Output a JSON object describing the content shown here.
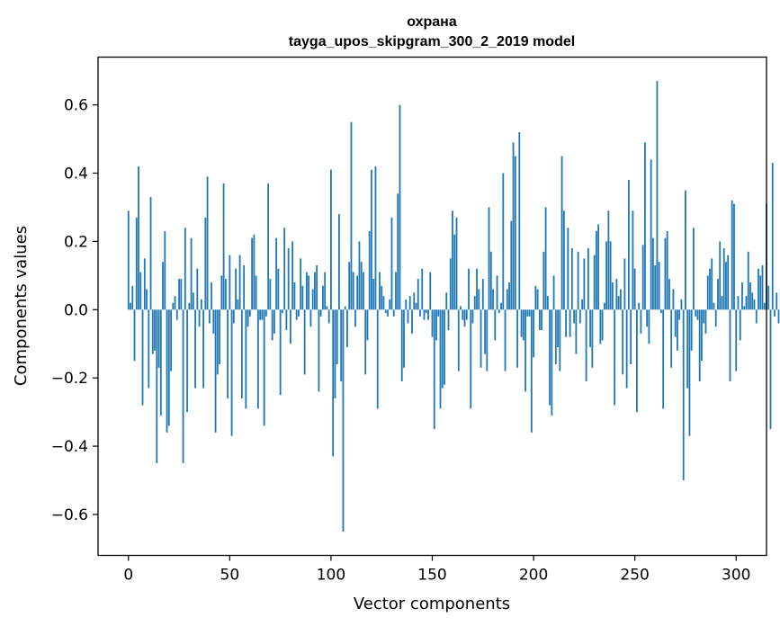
{
  "chart_data": {
    "type": "bar",
    "title": "охрана",
    "subtitle": "tayga_upos_skipgram_300_2_2019 model",
    "xlabel": "Vector components",
    "ylabel": "Components values",
    "xlim": [
      -15,
      315
    ],
    "ylim": [
      -0.72,
      0.74
    ],
    "xticks": [
      0,
      50,
      100,
      150,
      200,
      250,
      300
    ],
    "xtick_labels": [
      "0",
      "50",
      "100",
      "150",
      "200",
      "250",
      "300"
    ],
    "yticks": [
      -0.6,
      -0.4,
      -0.2,
      0.0,
      0.2,
      0.4,
      0.6
    ],
    "ytick_labels": [
      "−0.6",
      "−0.4",
      "−0.2",
      "0.0",
      "0.2",
      "0.4",
      "0.6"
    ],
    "grid": false,
    "legend": "none",
    "bar_color": "#1f77b4",
    "x_start": 0,
    "values": [
      0.29,
      0.02,
      0.07,
      -0.15,
      0.27,
      0.42,
      0.11,
      -0.28,
      0.15,
      0.06,
      -0.23,
      0.33,
      -0.13,
      -0.12,
      -0.45,
      -0.17,
      -0.31,
      0.14,
      0.23,
      -0.36,
      -0.34,
      -0.18,
      0.02,
      0.04,
      -0.03,
      0.09,
      0.09,
      -0.45,
      0.24,
      -0.3,
      0.02,
      0.21,
      0.05,
      -0.23,
      0.12,
      -0.05,
      0.03,
      -0.23,
      0.27,
      0.39,
      -0.04,
      0.08,
      -0.07,
      -0.36,
      -0.19,
      -0.16,
      0.1,
      0.37,
      0.09,
      -0.26,
      0.16,
      -0.37,
      -0.04,
      0.12,
      0.03,
      0.16,
      -0.26,
      0.13,
      -0.29,
      -0.05,
      -0.02,
      0.21,
      0.22,
      0.1,
      -0.29,
      -0.03,
      -0.03,
      -0.34,
      -0.02,
      0.37,
      0.09,
      -0.09,
      -0.07,
      0.21,
      0.12,
      -0.25,
      -0.01,
      0.24,
      -0.06,
      0.18,
      -0.1,
      0.2,
      0.08,
      -0.03,
      -0.02,
      0.15,
      0.07,
      -0.19,
      0.11,
      0.1,
      -0.05,
      0.06,
      0.11,
      0.13,
      -0.24,
      -0.02,
      0.07,
      0.11,
      0.01,
      -0.04,
      0.41,
      -0.43,
      -0.26,
      -0.16,
      0.28,
      -0.21,
      -0.65,
      0.01,
      -0.11,
      0.14,
      0.55,
      0.11,
      -0.05,
      0.1,
      0.2,
      0.14,
      0.11,
      -0.19,
      -0.09,
      0.23,
      0.41,
      0.09,
      0.42,
      -0.29,
      0.11,
      0.07,
      0.04,
      -0.01,
      -0.02,
      0.03,
      0.27,
      -0.02,
      0.11,
      0.34,
      0.6,
      -0.21,
      -0.17,
      0.03,
      -0.04,
      0.04,
      -0.07,
      0.05,
      0.02,
      0.09,
      -0.02,
      0.12,
      -0.03,
      -0.01,
      -0.03,
      0.11,
      -0.08,
      -0.35,
      -0.09,
      -0.02,
      -0.29,
      -0.23,
      -0.22,
      0.05,
      -0.06,
      0.15,
      0.29,
      0.22,
      0.27,
      -0.18,
      0.01,
      -0.03,
      -0.05,
      -0.03,
      0.12,
      -0.29,
      -0.04,
      0.04,
      0.12,
      0.06,
      -0.17,
      0.09,
      -0.13,
      -0.18,
      0.3,
      0.17,
      0.06,
      -0.09,
      0.1,
      -0.01,
      0.02,
      0.4,
      -0.18,
      0.06,
      0.08,
      0.26,
      0.49,
      0.45,
      -0.17,
      0.52,
      -0.08,
      -0.09,
      -0.24,
      -0.02,
      -0.02,
      -0.36,
      -0.14,
      0.07,
      0.06,
      -0.06,
      -0.06,
      0.17,
      0.3,
      0.04,
      -0.28,
      -0.31,
      0.1,
      -0.16,
      -0.11,
      -0.18,
      0.45,
      0.29,
      -0.08,
      0.24,
      -0.08,
      0.18,
      -0.04,
      -0.13,
      0.17,
      -0.04,
      0.03,
      0.15,
      -0.21,
      0.18,
      -0.11,
      -0.17,
      0.16,
      0.23,
      0.25,
      -0.1,
      -0.09,
      0.02,
      0.2,
      0.29,
      0.2,
      0.08,
      -0.28,
      0.09,
      0.04,
      0.06,
      -0.19,
      0.15,
      -0.23,
      0.38,
      -0.16,
      0.29,
      0.12,
      -0.3,
      0.02,
      -0.07,
      0.19,
      0.49,
      -0.05,
      -0.1,
      0.44,
      0.21,
      0.13,
      0.67,
      0.14,
      -0.01,
      -0.29,
      0.21,
      0.23,
      0.09,
      -0.17,
      0.06,
      -0.08,
      -0.12,
      -0.03,
      0.03,
      -0.5,
      0.35,
      -0.23,
      -0.37,
      -0.12,
      0.24,
      -0.02,
      -0.03,
      -0.21,
      -0.15,
      -0.04,
      -0.07,
      0.1,
      0.12,
      0.15,
      0.02,
      -0.05,
      0.09,
      0.2,
      0.04,
      0.18,
      0.14,
      0.16,
      -0.21,
      0.32,
      0.31,
      -0.18,
      0.04,
      -0.09,
      0.08,
      0.01,
      0.04,
      0.17,
      0.08,
      0.05,
      0.03,
      -0.04,
      0.12,
      0.1,
      0.13,
      0.02,
      0.31,
      0.07,
      -0.35,
      0.43,
      -0.02,
      0.05,
      -0.04,
      0.06,
      0.08
    ]
  }
}
